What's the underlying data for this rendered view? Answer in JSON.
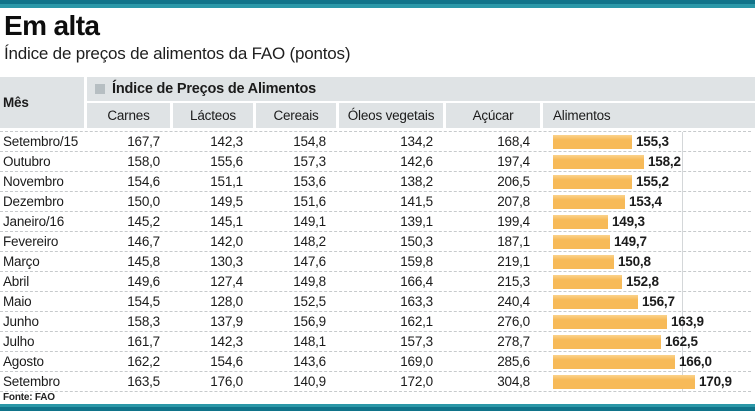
{
  "page": {
    "title": "Em alta",
    "subtitle": "Índice de preços de alimentos da FAO (pontos)",
    "source": "Fonte: FAO"
  },
  "colors": {
    "teal": "#11748a",
    "teal_light": "#2b98a8",
    "bar": "#f7ba58",
    "bar_hi": "#fbd38c",
    "header_bg": "#dfe3e5",
    "legend_square": "#b6bec2",
    "dash": "#c7cacc",
    "grid": "#d4d7d9"
  },
  "table": {
    "month_header": "Mês",
    "group_header": "Índice de Preços de Alimentos",
    "columns": [
      "Carnes",
      "Lácteos",
      "Cereais",
      "Óleos vegetais",
      "Açúcar",
      "Alimentos"
    ],
    "rows": [
      {
        "month": "Setembro/15",
        "values": [
          "167,7",
          "142,3",
          "154,8",
          "134,2",
          "168,4"
        ],
        "alimentos": "155,3"
      },
      {
        "month": "Outubro",
        "values": [
          "158,0",
          "155,6",
          "157,3",
          "142,6",
          "197,4"
        ],
        "alimentos": "158,2"
      },
      {
        "month": "Novembro",
        "values": [
          "154,6",
          "151,1",
          "153,6",
          "138,2",
          "206,5"
        ],
        "alimentos": "155,2"
      },
      {
        "month": "Dezembro",
        "values": [
          "150,0",
          "149,5",
          "151,6",
          "141,5",
          "207,8"
        ],
        "alimentos": "153,4"
      },
      {
        "month": "Janeiro/16",
        "values": [
          "145,2",
          "145,1",
          "149,1",
          "139,1",
          "199,4"
        ],
        "alimentos": "149,3"
      },
      {
        "month": "Fevereiro",
        "values": [
          "146,7",
          "142,0",
          "148,2",
          "150,3",
          "187,1"
        ],
        "alimentos": "149,7"
      },
      {
        "month": "Março",
        "values": [
          "145,8",
          "130,3",
          "147,6",
          "159,8",
          "219,1"
        ],
        "alimentos": "150,8"
      },
      {
        "month": "Abril",
        "values": [
          "149,6",
          "127,4",
          "149,8",
          "166,4",
          "215,3"
        ],
        "alimentos": "152,8"
      },
      {
        "month": "Maio",
        "values": [
          "154,5",
          "128,0",
          "152,5",
          "163,3",
          "240,4"
        ],
        "alimentos": "156,7"
      },
      {
        "month": "Junho",
        "values": [
          "158,3",
          "137,9",
          "156,9",
          "162,1",
          "276,0"
        ],
        "alimentos": "163,9"
      },
      {
        "month": "Julho",
        "values": [
          "161,7",
          "142,3",
          "148,1",
          "157,3",
          "278,7"
        ],
        "alimentos": "162,5"
      },
      {
        "month": "Agosto",
        "values": [
          "162,2",
          "154,6",
          "143,6",
          "169,0",
          "285,6"
        ],
        "alimentos": "166,0"
      },
      {
        "month": "Setembro",
        "values": [
          "163,5",
          "176,0",
          "140,9",
          "172,0",
          "304,8"
        ],
        "alimentos": "170,9"
      }
    ]
  },
  "chart_data": {
    "type": "bar",
    "orientation": "horizontal",
    "title": "Em alta — Índice de preços de alimentos da FAO (pontos)",
    "series_label": "Alimentos",
    "categories": [
      "Setembro/15",
      "Outubro",
      "Novembro",
      "Dezembro",
      "Janeiro/16",
      "Fevereiro",
      "Março",
      "Abril",
      "Maio",
      "Junho",
      "Julho",
      "Agosto",
      "Setembro"
    ],
    "values": [
      155.3,
      158.2,
      155.2,
      153.4,
      149.3,
      149.7,
      150.8,
      152.8,
      156.7,
      163.9,
      162.5,
      166.0,
      170.9
    ],
    "xlim": [
      135.5,
      175
    ],
    "unit": "pontos",
    "grid": false,
    "legend_position": "none",
    "bar_color": "#f7ba58",
    "columns_full_table": [
      "Carnes",
      "Lácteos",
      "Cereais",
      "Óleos vegetais",
      "Açúcar",
      "Alimentos"
    ],
    "series": [
      {
        "name": "Carnes",
        "values": [
          167.7,
          158.0,
          154.6,
          150.0,
          145.2,
          146.7,
          145.8,
          149.6,
          154.5,
          158.3,
          161.7,
          162.2,
          163.5
        ]
      },
      {
        "name": "Lácteos",
        "values": [
          142.3,
          155.6,
          151.1,
          149.5,
          145.1,
          142.0,
          130.3,
          127.4,
          128.0,
          137.9,
          142.3,
          154.6,
          176.0
        ]
      },
      {
        "name": "Cereais",
        "values": [
          154.8,
          157.3,
          153.6,
          151.6,
          149.1,
          148.2,
          147.6,
          149.8,
          152.5,
          156.9,
          148.1,
          143.6,
          140.9
        ]
      },
      {
        "name": "Óleos vegetais",
        "values": [
          134.2,
          142.6,
          138.2,
          141.5,
          139.1,
          150.3,
          159.8,
          166.4,
          163.3,
          162.1,
          157.3,
          169.0,
          172.0
        ]
      },
      {
        "name": "Açúcar",
        "values": [
          168.4,
          197.4,
          206.5,
          207.8,
          199.4,
          187.1,
          219.1,
          215.3,
          240.4,
          276.0,
          278.7,
          285.6,
          304.8
        ]
      },
      {
        "name": "Alimentos",
        "values": [
          155.3,
          158.2,
          155.2,
          153.4,
          149.3,
          149.7,
          150.8,
          152.8,
          156.7,
          163.9,
          162.5,
          166.0,
          170.9
        ]
      }
    ]
  }
}
